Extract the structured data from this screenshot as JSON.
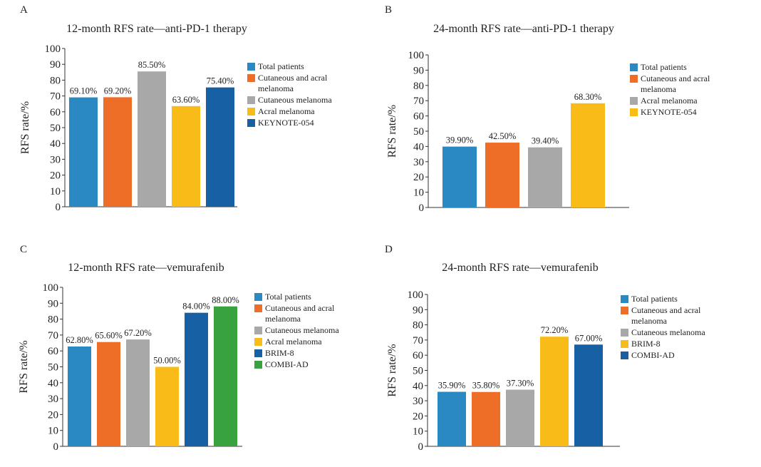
{
  "colors": {
    "total_patients": "#2a88c2",
    "cutaneous_acral": "#ee6d27",
    "cutaneous": "#a8a8a8",
    "acral": "#f9bb17",
    "dark_blue": "#1760a3",
    "green": "#38a23f"
  },
  "chart_data": [
    {
      "panel": "A",
      "type": "bar",
      "title": "12-month RFS rate—anti-PD-1 therapy",
      "ylabel": "RFS rate/%",
      "xlabel": "",
      "ylim": [
        0,
        100
      ],
      "yticks": [
        0,
        10,
        20,
        30,
        40,
        50,
        60,
        70,
        80,
        90,
        100
      ],
      "categories": [
        "Total patients",
        "Cutaneous and acral melanoma",
        "Cutaneous melanoma",
        "Acral melanoma",
        "KEYNOTE-054"
      ],
      "values": [
        69.1,
        69.2,
        85.5,
        63.6,
        75.4
      ],
      "data_labels": [
        "69.10%",
        "69.20%",
        "85.50%",
        "63.60%",
        "75.40%"
      ],
      "bar_colors": [
        "#2a88c2",
        "#ee6d27",
        "#a8a8a8",
        "#f9bb17",
        "#1760a3"
      ],
      "legend": [
        "Total patients",
        "Cutaneous and acral melanoma",
        "Cutaneous melanoma",
        "Acral melanoma",
        "KEYNOTE-054"
      ],
      "legend_position": "right",
      "grid": false
    },
    {
      "panel": "B",
      "type": "bar",
      "title": "24-month RFS rate—anti-PD-1 therapy",
      "ylabel": "RFS rate/%",
      "xlabel": "",
      "ylim": [
        0,
        100
      ],
      "yticks": [
        0,
        10,
        20,
        30,
        40,
        50,
        60,
        70,
        80,
        90,
        100
      ],
      "categories": [
        "Total patients",
        "Cutaneous and acral melanoma",
        "Acral melanoma",
        "KEYNOTE-054"
      ],
      "values": [
        39.9,
        42.5,
        39.4,
        68.3
      ],
      "data_labels": [
        "39.90%",
        "42.50%",
        "39.40%",
        "68.30%"
      ],
      "bar_colors": [
        "#2a88c2",
        "#ee6d27",
        "#a8a8a8",
        "#f9bb17"
      ],
      "legend": [
        "Total patients",
        "Cutaneous and acral melanoma",
        "Acral melanoma",
        "KEYNOTE-054"
      ],
      "legend_position": "right",
      "grid": false
    },
    {
      "panel": "C",
      "type": "bar",
      "title": "12-month RFS rate—vemurafenib",
      "ylabel": "RFS rate/%",
      "xlabel": "",
      "ylim": [
        0,
        100
      ],
      "yticks": [
        0,
        10,
        20,
        30,
        40,
        50,
        60,
        70,
        80,
        90,
        100
      ],
      "categories": [
        "Total patients",
        "Cutaneous and acral melanoma",
        "Cutaneous melanoma",
        "Acral melanoma",
        "BRIM-8",
        "COMBI-AD"
      ],
      "values": [
        62.8,
        65.6,
        67.2,
        50.0,
        84.0,
        88.0
      ],
      "data_labels": [
        "62.80%",
        "65.60%",
        "67.20%",
        "50.00%",
        "84.00%",
        "88.00%"
      ],
      "bar_colors": [
        "#2a88c2",
        "#ee6d27",
        "#a8a8a8",
        "#f9bb17",
        "#1760a3",
        "#38a23f"
      ],
      "legend": [
        "Total patients",
        "Cutaneous and acral melanoma",
        "Cutaneous melanoma",
        "Acral melanoma",
        "BRIM-8",
        "COMBI-AD"
      ],
      "legend_position": "right",
      "grid": false
    },
    {
      "panel": "D",
      "type": "bar",
      "title": "24-month RFS rate—vemurafenib",
      "ylabel": "RFS rate/%",
      "xlabel": "",
      "ylim": [
        0,
        100
      ],
      "yticks": [
        0,
        10,
        20,
        30,
        40,
        50,
        60,
        70,
        80,
        90,
        100
      ],
      "categories": [
        "Total patients",
        "Cutaneous and acral melanoma",
        "Cutaneous melanoma",
        "BRIM-8",
        "COMBI-AD"
      ],
      "values": [
        35.9,
        35.8,
        37.3,
        72.2,
        67.0
      ],
      "data_labels": [
        "35.90%",
        "35.80%",
        "37.30%",
        "72.20%",
        "67.00%"
      ],
      "bar_colors": [
        "#2a88c2",
        "#ee6d27",
        "#a8a8a8",
        "#f9bb17",
        "#1760a3"
      ],
      "legend": [
        "Total patients",
        "Cutaneous and acral melanoma",
        "Cutaneous melanoma",
        "BRIM-8",
        "COMBI-AD"
      ],
      "legend_position": "right",
      "grid": false
    }
  ]
}
